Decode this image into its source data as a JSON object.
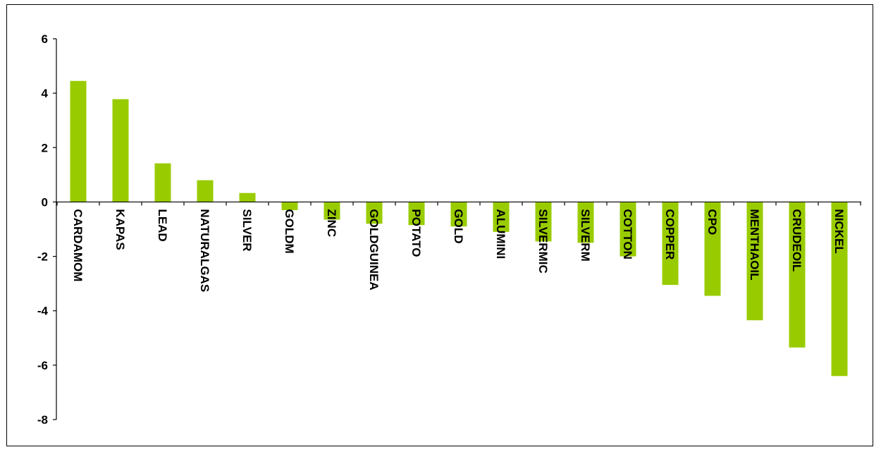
{
  "chart_data": {
    "type": "bar",
    "title": "",
    "xlabel": "",
    "ylabel": "",
    "categories": [
      "CARDAMOM",
      "KAPAS",
      "LEAD",
      "NATURALGAS",
      "SILVER",
      "GOLDM",
      "ZINC",
      "GOLDGUINEA",
      "POTATO",
      "GOLD",
      "ALUMINI",
      "SILVERMIC",
      "SILVERM",
      "COTTON",
      "COPPER",
      "CPO",
      "MENTHAOIL",
      "CRUDEOIL",
      "NICKEL"
    ],
    "values": [
      4.45,
      3.78,
      1.42,
      0.8,
      0.33,
      -0.3,
      -0.65,
      -0.8,
      -0.85,
      -0.9,
      -1.1,
      -1.45,
      -1.5,
      -2.0,
      -3.05,
      -3.45,
      -4.35,
      -5.35,
      -6.4
    ],
    "ylim": [
      -8,
      6
    ],
    "yticks": [
      6,
      4,
      2,
      0,
      -2,
      -4,
      -6,
      -8
    ],
    "grid": false,
    "legend": "none",
    "bar_color": "#99cc00"
  }
}
